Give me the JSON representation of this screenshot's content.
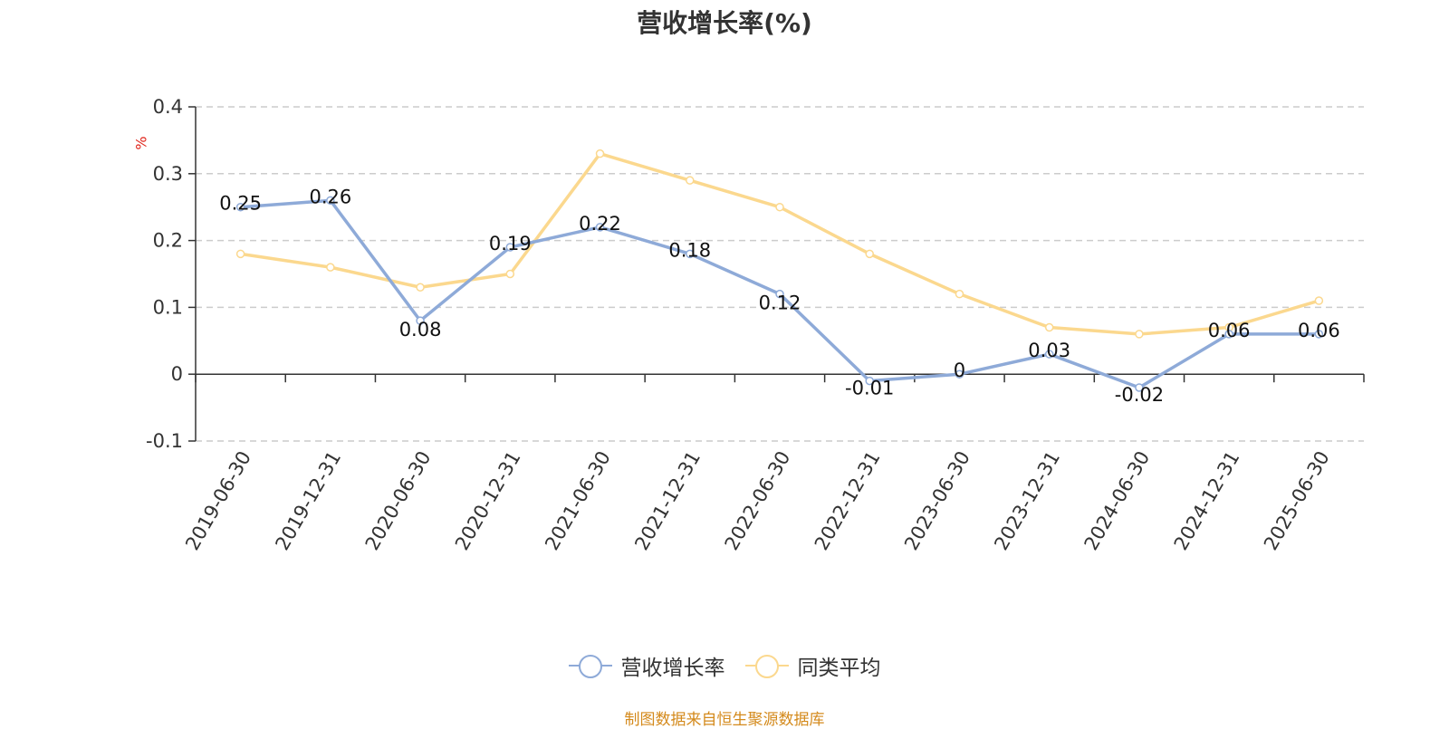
{
  "chart_data": {
    "type": "line",
    "title": "营收增长率(%)",
    "ylabel": "%",
    "xlabel": "",
    "ylim": [
      -0.1,
      0.4
    ],
    "yticks": [
      -0.1,
      0,
      0.1,
      0.2,
      0.3,
      0.4
    ],
    "ytick_labels": [
      "-0.1",
      "0",
      "0.1",
      "0.2",
      "0.3",
      "0.4"
    ],
    "grid": true,
    "legend_position": "bottom",
    "categories": [
      "2019-06-30",
      "2019-12-31",
      "2020-06-30",
      "2020-12-31",
      "2021-06-30",
      "2021-12-31",
      "2022-06-30",
      "2022-12-31",
      "2023-06-30",
      "2023-12-31",
      "2024-06-30",
      "2024-12-31",
      "2025-06-30"
    ],
    "series": [
      {
        "name": "营收增长率",
        "color": "#8eaad8",
        "show_labels": true,
        "values": [
          0.25,
          0.26,
          0.08,
          0.19,
          0.22,
          0.18,
          0.12,
          -0.01,
          0,
          0.03,
          -0.02,
          0.06,
          0.06
        ],
        "labels": [
          "0.25",
          "0.26",
          "0.08",
          "0.19",
          "0.22",
          "0.18",
          "0.12",
          "-0.01",
          "0",
          "0.03",
          "-0.02",
          "0.06",
          "0.06"
        ]
      },
      {
        "name": "同类平均",
        "color": "#fbd88e",
        "show_labels": false,
        "values": [
          0.18,
          0.16,
          0.13,
          0.15,
          0.33,
          0.29,
          0.25,
          0.18,
          0.12,
          0.07,
          0.06,
          0.07,
          0.11
        ]
      }
    ]
  },
  "source_note": "制图数据来自恒生聚源数据库"
}
